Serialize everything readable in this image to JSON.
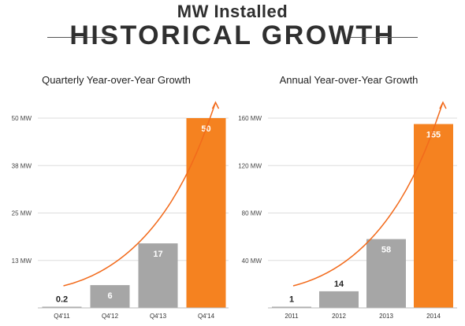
{
  "header": {
    "subtitle": "MW Installed",
    "title": "HISTORICAL GROWTH"
  },
  "colors": {
    "gray_bar": "#a6a6a6",
    "highlight_bar": "#f58220",
    "trend_line": "#f26a1b",
    "grid": "#dddddd"
  },
  "chart_data": [
    {
      "type": "bar",
      "title": "Quarterly Year-over-Year Growth",
      "categories": [
        "Q4'11",
        "Q4'12",
        "Q4'13",
        "Q4'14"
      ],
      "values": [
        0.2,
        6,
        17,
        50
      ],
      "value_labels": [
        "0.2",
        "6",
        "17",
        "50"
      ],
      "yticks": [
        "13 MW",
        "25 MW",
        "38 MW",
        "50 MW"
      ],
      "ytick_values": [
        12.5,
        25,
        37.5,
        50
      ],
      "ylim": [
        0,
        50
      ],
      "highlight_index": 3,
      "grid": true,
      "trend_arrow": true
    },
    {
      "type": "bar",
      "title": "Annual Year-over-Year Growth",
      "categories": [
        "2011",
        "2012",
        "2013",
        "2014"
      ],
      "values": [
        1,
        14,
        58,
        155
      ],
      "value_labels": [
        "1",
        "14",
        "58",
        "155"
      ],
      "yticks": [
        "40 MW",
        "80 MW",
        "120 MW",
        "160 MW"
      ],
      "ytick_values": [
        40,
        80,
        120,
        160
      ],
      "ylim": [
        0,
        160
      ],
      "highlight_index": 3,
      "grid": true,
      "trend_arrow": true
    }
  ]
}
